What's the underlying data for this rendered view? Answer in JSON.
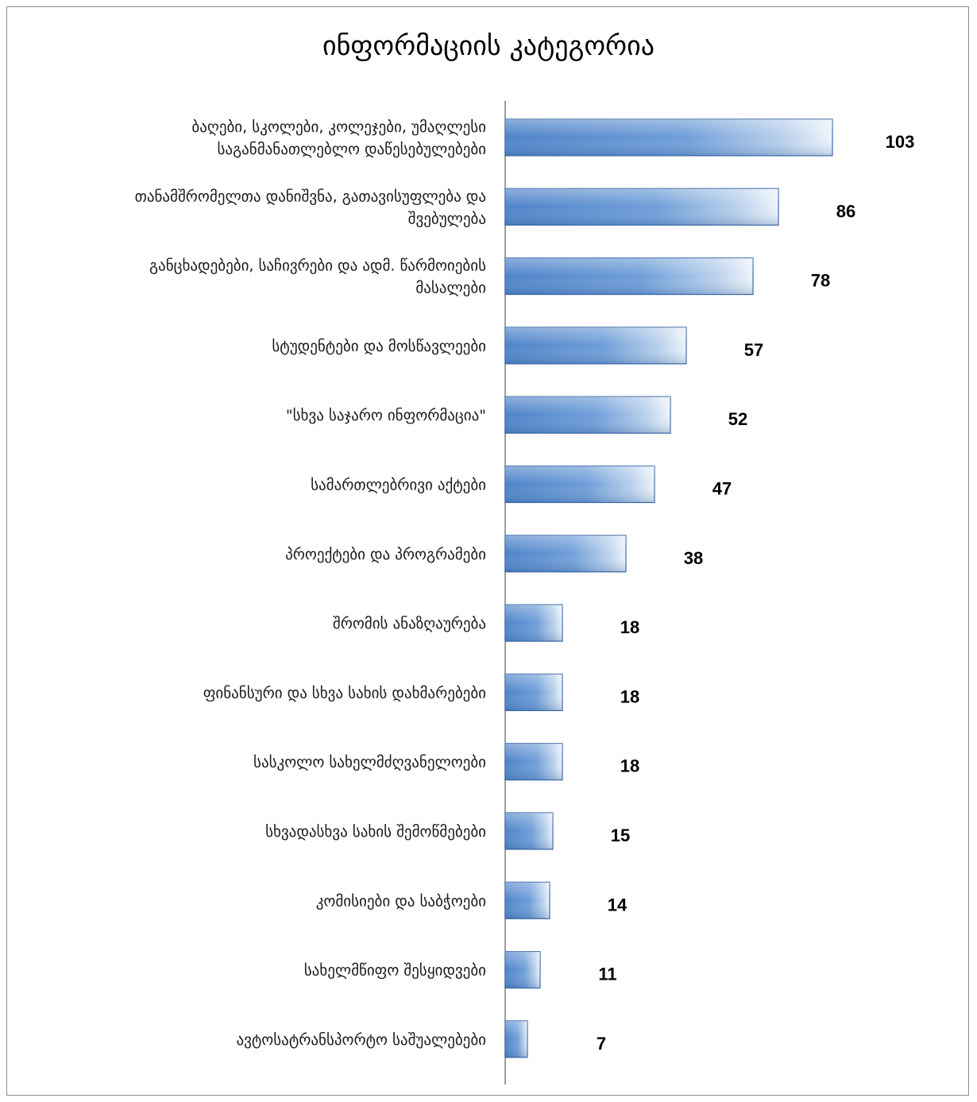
{
  "chart_data": {
    "type": "bar",
    "orientation": "horizontal",
    "title": "ინფორმაციის კატეგორია",
    "xlabel": "",
    "ylabel": "",
    "xlim": [
      0,
      103
    ],
    "grid": false,
    "legend": "none",
    "bar_color": "#5b8fd0",
    "categories": [
      [
        "ბაღები, სკოლები, კოლეჯები, უმაღლესი",
        "საგანმანათლებლო დაწესებულებები"
      ],
      [
        "თანამშრომელთა დანიშვნა, გათავისუფლება და",
        "შვებულება"
      ],
      [
        "განცხადებები, საჩივრები და ადმ. წარმოიების",
        "მასალები"
      ],
      [
        "სტუდენტები და მოსწავლეები"
      ],
      [
        "\"სხვა საჯარო ინფორმაცია\""
      ],
      [
        "სამართლებრივი აქტები"
      ],
      [
        "პროექტები და პროგრამები"
      ],
      [
        "შრომის ანაზღაურება"
      ],
      [
        "ფინანსური და სხვა სახის დახმარებები"
      ],
      [
        "სასკოლო სახელმძღვანელოები"
      ],
      [
        "სხვადასხვა სახის შემოწმებები"
      ],
      [
        "კომისიები და საბჭოები"
      ],
      [
        "სახელმწიფო შესყიდვები"
      ],
      [
        "ავტოსატრანსპორტო საშუალებები"
      ]
    ],
    "values": [
      103,
      86,
      78,
      57,
      52,
      47,
      38,
      18,
      18,
      18,
      15,
      14,
      11,
      7
    ],
    "value_labels": [
      "103",
      "86",
      "78",
      "57",
      "52",
      "47",
      "38",
      "18",
      "18",
      "18",
      "15",
      "14",
      "11",
      "7"
    ]
  }
}
